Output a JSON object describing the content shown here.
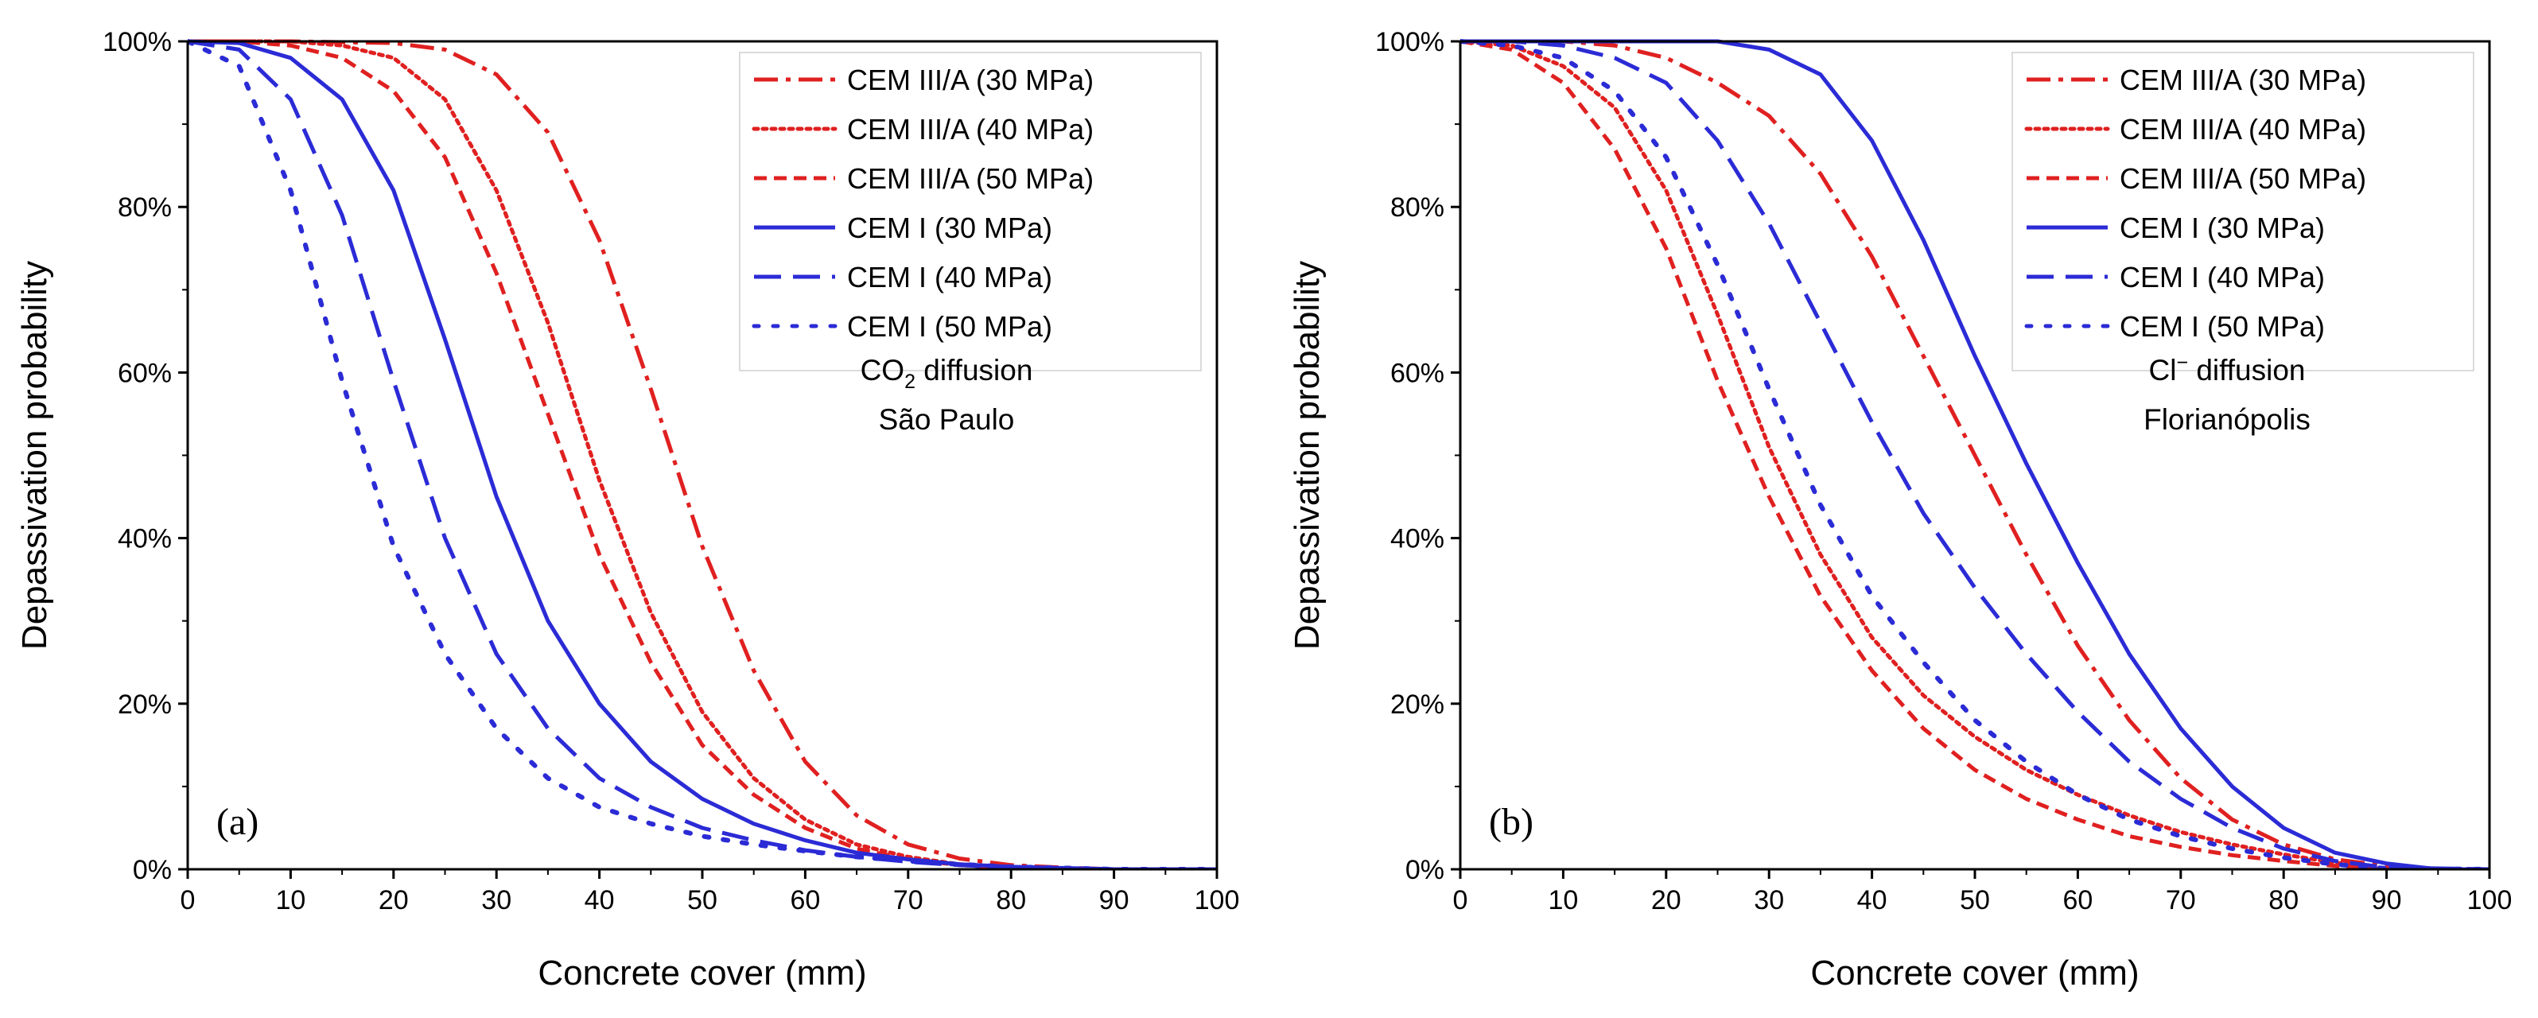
{
  "chart_data": [
    {
      "type": "line",
      "panel_label": "(a)",
      "annotation_lines": [
        "CO|2| diffusion",
        "São Paulo"
      ],
      "xlabel": "Concrete cover (mm)",
      "ylabel": "Depassivation probability",
      "xlim": [
        0,
        100
      ],
      "ylim": [
        0,
        100
      ],
      "xticks": [
        0,
        10,
        20,
        30,
        40,
        50,
        60,
        70,
        80,
        90,
        100
      ],
      "yticks": [
        0,
        20,
        40,
        60,
        80,
        100
      ],
      "ytick_labels": [
        "0%",
        "20%",
        "40%",
        "60%",
        "80%",
        "100%"
      ],
      "legend_position": "top-right",
      "series": [
        {
          "name": "CEM III/A (30 MPa)",
          "color": "#e02020",
          "style": "dashdot",
          "x": [
            0,
            10,
            20,
            25,
            30,
            35,
            40,
            45,
            50,
            55,
            60,
            65,
            70,
            75,
            80,
            85,
            90,
            100
          ],
          "y": [
            100,
            100,
            99.8,
            99,
            96,
            89,
            76,
            58,
            39,
            24,
            13,
            6.5,
            3,
            1.3,
            0.5,
            0.2,
            0,
            0
          ]
        },
        {
          "name": "CEM III/A (40 MPa)",
          "color": "#e02020",
          "style": "dotted",
          "x": [
            0,
            5,
            10,
            15,
            20,
            25,
            30,
            35,
            40,
            45,
            50,
            55,
            60,
            65,
            70,
            75,
            80,
            85,
            90,
            100
          ],
          "y": [
            100,
            100,
            100,
            99.5,
            98,
            93,
            82,
            66,
            47,
            31,
            19,
            11,
            6,
            3,
            1.5,
            0.6,
            0.3,
            0.1,
            0,
            0
          ]
        },
        {
          "name": "CEM III/A (50 MPa)",
          "color": "#e02020",
          "style": "dashed",
          "x": [
            0,
            5,
            10,
            15,
            20,
            25,
            30,
            35,
            40,
            45,
            50,
            55,
            60,
            65,
            70,
            75,
            80,
            85,
            90,
            100
          ],
          "y": [
            100,
            100,
            99.5,
            98,
            94,
            86,
            72,
            55,
            38,
            25,
            15,
            9,
            5,
            2.5,
            1.2,
            0.5,
            0.2,
            0.1,
            0,
            0
          ]
        },
        {
          "name": "CEM I (30 MPa)",
          "color": "#2b2bd6",
          "style": "solid",
          "x": [
            0,
            5,
            10,
            15,
            20,
            25,
            30,
            35,
            40,
            45,
            50,
            55,
            60,
            65,
            70,
            75,
            80,
            90,
            100
          ],
          "y": [
            100,
            99.8,
            98,
            93,
            82,
            64,
            45,
            30,
            20,
            13,
            8.5,
            5.5,
            3.5,
            2,
            1.2,
            0.6,
            0.3,
            0,
            0
          ]
        },
        {
          "name": "CEM I (40 MPa)",
          "color": "#2b2bd6",
          "style": "longdash",
          "x": [
            0,
            5,
            10,
            15,
            20,
            25,
            30,
            35,
            40,
            45,
            50,
            55,
            60,
            65,
            70,
            75,
            80,
            90,
            100
          ],
          "y": [
            100,
            99,
            93,
            79,
            59,
            40,
            26,
            17,
            11,
            7.5,
            5,
            3.5,
            2.3,
            1.5,
            0.9,
            0.5,
            0.2,
            0,
            0
          ]
        },
        {
          "name": "CEM I (50 MPa)",
          "color": "#2b2bd6",
          "style": "dotted-sparse",
          "x": [
            0,
            5,
            10,
            15,
            20,
            25,
            30,
            35,
            40,
            45,
            50,
            55,
            60,
            65,
            70,
            75,
            80,
            90,
            100
          ],
          "y": [
            100,
            97,
            82,
            59,
            39,
            26,
            17,
            11,
            7.5,
            5.5,
            4,
            3,
            2.2,
            1.5,
            1,
            0.6,
            0.3,
            0,
            0
          ]
        }
      ]
    },
    {
      "type": "line",
      "panel_label": "(b)",
      "annotation_lines": [
        "Cl|−| diffusion",
        "Florianópolis"
      ],
      "xlabel": "Concrete cover (mm)",
      "ylabel": "Depassivation probability",
      "xlim": [
        0,
        100
      ],
      "ylim": [
        0,
        100
      ],
      "xticks": [
        0,
        10,
        20,
        30,
        40,
        50,
        60,
        70,
        80,
        90,
        100
      ],
      "yticks": [
        0,
        20,
        40,
        60,
        80,
        100
      ],
      "ytick_labels": [
        "0%",
        "20%",
        "40%",
        "60%",
        "80%",
        "100%"
      ],
      "legend_position": "top-right",
      "series": [
        {
          "name": "CEM III/A (30 MPa)",
          "color": "#e02020",
          "style": "dashdot",
          "x": [
            0,
            10,
            15,
            20,
            25,
            30,
            35,
            40,
            45,
            50,
            55,
            60,
            65,
            70,
            75,
            80,
            85,
            90,
            95,
            100
          ],
          "y": [
            100,
            100,
            99.5,
            98,
            95,
            91,
            84,
            74,
            62,
            50,
            38,
            27,
            18,
            11,
            6,
            3,
            1.2,
            0.4,
            0,
            0
          ]
        },
        {
          "name": "CEM III/A (40 MPa)",
          "color": "#e02020",
          "style": "dotted",
          "x": [
            0,
            5,
            10,
            15,
            20,
            25,
            30,
            35,
            40,
            45,
            50,
            55,
            60,
            65,
            70,
            75,
            80,
            85,
            90,
            100
          ],
          "y": [
            100,
            99.5,
            97,
            92,
            82,
            67,
            51,
            38,
            28,
            21,
            16,
            12,
            9,
            6.5,
            4.5,
            3,
            1.8,
            0.8,
            0,
            0
          ]
        },
        {
          "name": "CEM III/A (50 MPa)",
          "color": "#e02020",
          "style": "dashed",
          "x": [
            0,
            5,
            10,
            15,
            20,
            25,
            30,
            35,
            40,
            45,
            50,
            55,
            60,
            65,
            70,
            75,
            80,
            85,
            90,
            100
          ],
          "y": [
            100,
            99,
            95,
            87,
            75,
            59,
            45,
            33,
            24,
            17,
            12,
            8.5,
            6,
            4,
            2.7,
            1.7,
            1,
            0.4,
            0,
            0
          ]
        },
        {
          "name": "CEM I (30 MPa)",
          "color": "#2b2bd6",
          "style": "solid",
          "x": [
            0,
            10,
            15,
            20,
            25,
            30,
            35,
            40,
            45,
            50,
            55,
            60,
            65,
            70,
            75,
            80,
            85,
            90,
            95,
            100
          ],
          "y": [
            100,
            100,
            100,
            100,
            100,
            99,
            96,
            88,
            76,
            62,
            49,
            37,
            26,
            17,
            10,
            5,
            2,
            0.7,
            0,
            0
          ]
        },
        {
          "name": "CEM I (40 MPa)",
          "color": "#2b2bd6",
          "style": "longdash",
          "x": [
            0,
            5,
            10,
            15,
            20,
            25,
            30,
            35,
            40,
            45,
            50,
            55,
            60,
            65,
            70,
            75,
            80,
            85,
            90,
            100
          ],
          "y": [
            100,
            100,
            99.5,
            98,
            95,
            88,
            78,
            66,
            54,
            43,
            34,
            26,
            19,
            13,
            8.5,
            5,
            2.5,
            1,
            0.2,
            0
          ]
        },
        {
          "name": "CEM I (50 MPa)",
          "color": "#2b2bd6",
          "style": "dotted-sparse",
          "x": [
            0,
            5,
            10,
            15,
            20,
            25,
            30,
            35,
            40,
            45,
            50,
            55,
            60,
            65,
            70,
            75,
            80,
            85,
            90,
            100
          ],
          "y": [
            100,
            99.5,
            98,
            94,
            86,
            73,
            58,
            44,
            33,
            25,
            18,
            13,
            9,
            6,
            4,
            2.5,
            1.4,
            0.6,
            0.1,
            0
          ]
        }
      ]
    }
  ]
}
